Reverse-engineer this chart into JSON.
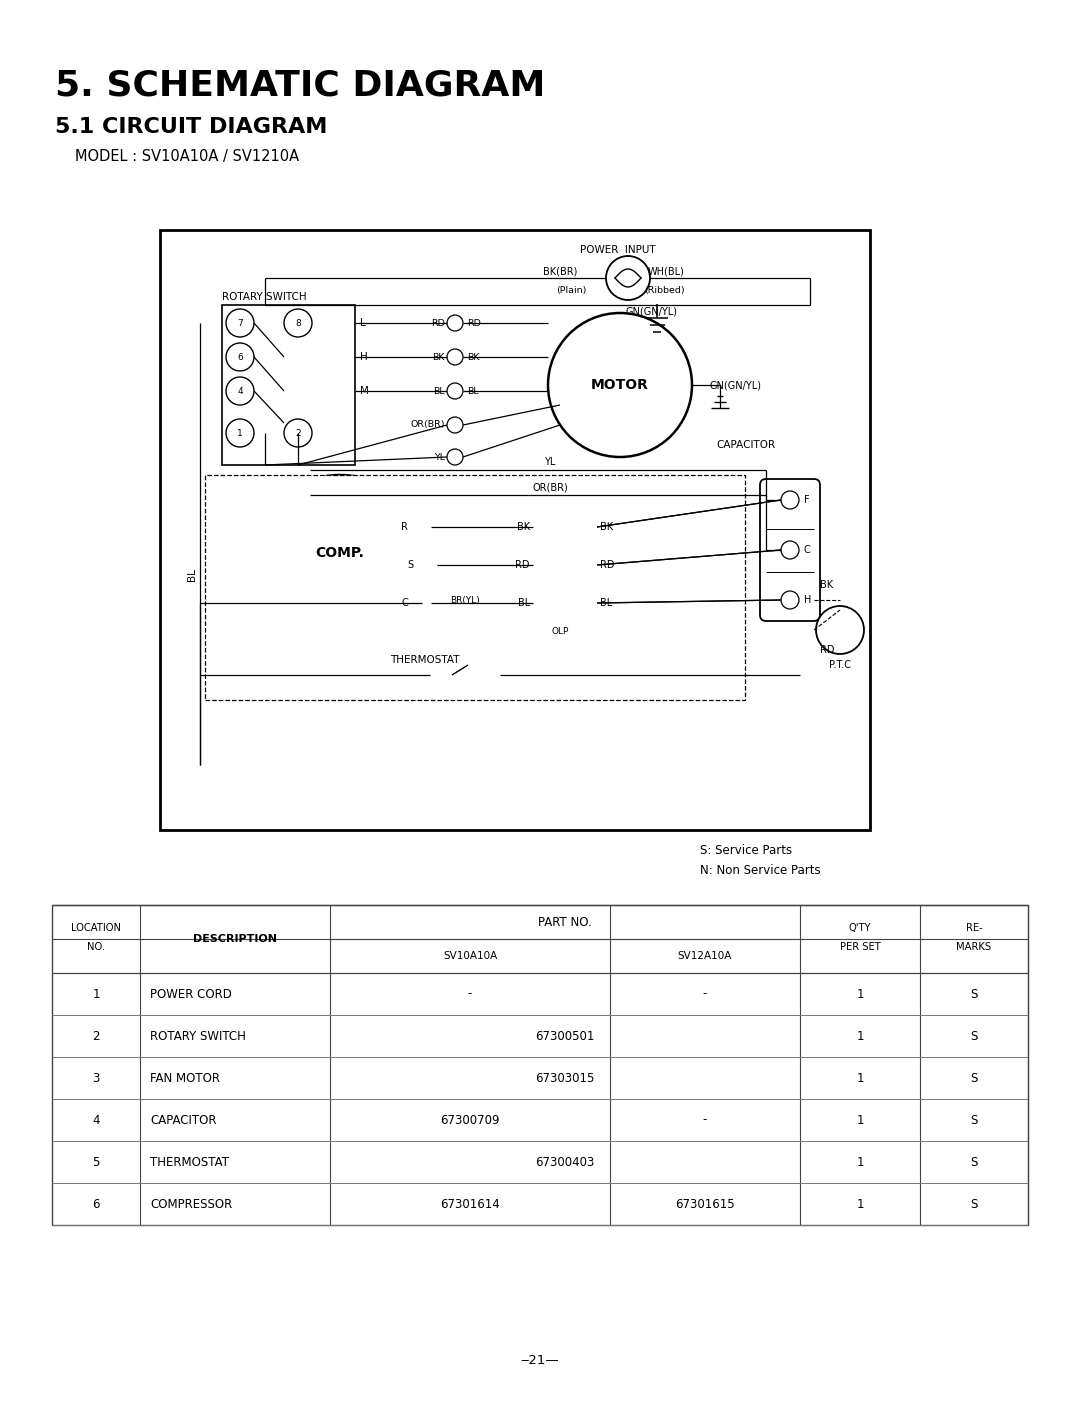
{
  "title1": "5. SCHEMATIC DIAGRAM",
  "title2": "5.1 CIRCUIT DIAGRAM",
  "model": "MODEL : SV10A10A / SV1210A",
  "bg_color": "#ffffff",
  "legend_s": "S: Service Parts",
  "legend_n": "N: Non Service Parts",
  "rows": [
    {
      "loc": "1",
      "desc": "POWER CORD",
      "sv10": "-",
      "sv12": "-",
      "qty": "1",
      "rem": "S",
      "span": false
    },
    {
      "loc": "2",
      "desc": "ROTARY SWITCH",
      "sv10": "67300501",
      "sv12": "67300501",
      "qty": "1",
      "rem": "S",
      "span": true
    },
    {
      "loc": "3",
      "desc": "FAN MOTOR",
      "sv10": "67303015",
      "sv12": "67303015",
      "qty": "1",
      "rem": "S",
      "span": true
    },
    {
      "loc": "4",
      "desc": "CAPACITOR",
      "sv10": "67300709",
      "sv12": "-",
      "qty": "1",
      "rem": "S",
      "span": false
    },
    {
      "loc": "5",
      "desc": "THERMOSTAT",
      "sv10": "67300403",
      "sv12": "67300403",
      "qty": "1",
      "rem": "S",
      "span": true
    },
    {
      "loc": "6",
      "desc": "COMPRESSOR",
      "sv10": "67301614",
      "sv12": "67301615",
      "qty": "1",
      "rem": "S",
      "span": false
    }
  ]
}
